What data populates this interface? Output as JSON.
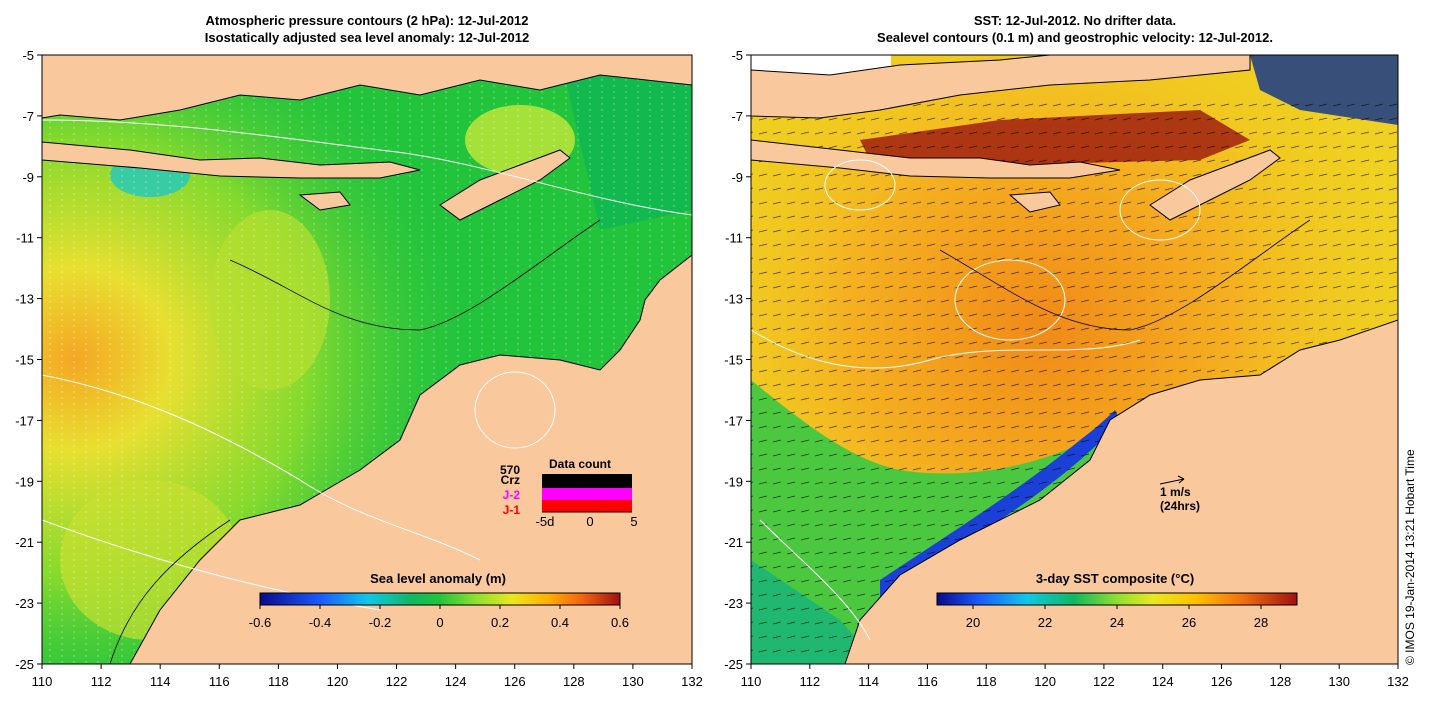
{
  "left_panel": {
    "title_line1": "Atmospheric pressure contours (2 hPa): 12-Jul-2012",
    "title_line2": "Isostatically adjusted sea level anomaly: 12-Jul-2012",
    "x_ticks": [
      "110",
      "112",
      "114",
      "116",
      "118",
      "120",
      "122",
      "124",
      "126",
      "128",
      "130",
      "132"
    ],
    "y_ticks": [
      "-5",
      "-7",
      "-9",
      "-11",
      "-13",
      "-15",
      "-17",
      "-19",
      "-21",
      "-23",
      "-25"
    ],
    "colorbar": {
      "label": "Sea level anomaly (m)",
      "ticks": [
        "-0.6",
        "-0.4",
        "-0.2",
        "0",
        "0.2",
        "0.4",
        "0.6"
      ],
      "range": [
        -0.6,
        0.6
      ]
    },
    "data_count": {
      "title": "Data count",
      "labels": [
        "570",
        "Crz",
        "J-2",
        "J-1"
      ],
      "label_colors": [
        "#000000",
        "#000000",
        "#ff00ff",
        "#ff0000"
      ],
      "axis_ticks": [
        "-5d",
        "0",
        "5"
      ]
    }
  },
  "right_panel": {
    "title_line1": "SST: 12-Jul-2012. No drifter data.",
    "title_line2": "Sealevel contours (0.1 m) and geostrophic velocity: 12-Jul-2012.",
    "x_ticks": [
      "110",
      "112",
      "114",
      "116",
      "118",
      "120",
      "122",
      "124",
      "126",
      "128",
      "130",
      "132"
    ],
    "y_ticks": [
      "-5",
      "-7",
      "-9",
      "-11",
      "-13",
      "-15",
      "-17",
      "-19",
      "-21",
      "-23",
      "-25"
    ],
    "colorbar": {
      "label": "3-day SST composite (°C)",
      "ticks": [
        "20",
        "22",
        "24",
        "26",
        "28"
      ],
      "range": [
        19,
        29
      ]
    },
    "velocity_key": {
      "line1": "1 m/s",
      "line2": "(24hrs)"
    }
  },
  "credit": "© IMOS 19-Jan-2014 13:21 Hobart Time",
  "colors": {
    "land": "#f9c89d",
    "frame": "#000000"
  }
}
